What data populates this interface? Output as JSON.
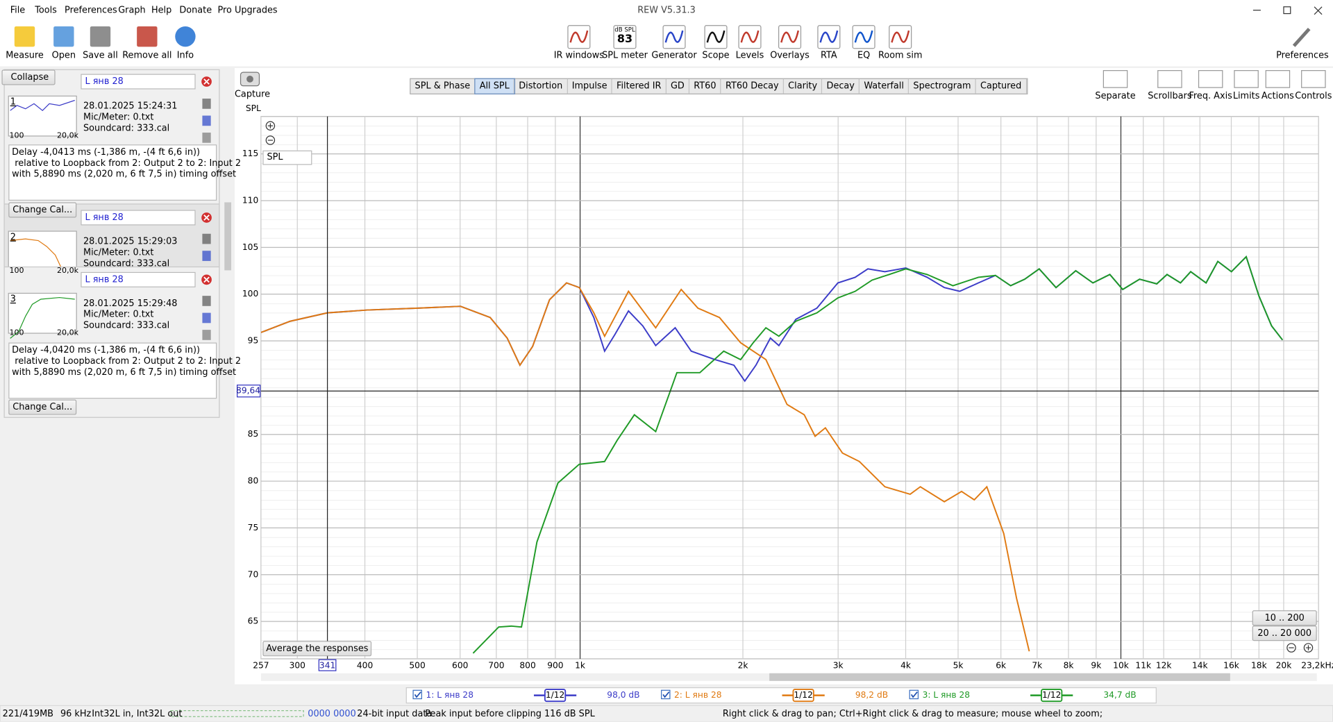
{
  "window": {
    "title": "REW V5.31.3"
  },
  "menu": [
    "File",
    "Tools",
    "Preferences",
    "Graph",
    "Help",
    "Donate",
    "Pro Upgrades"
  ],
  "toolbar_left": [
    "Measure",
    "Open",
    "Save all",
    "Remove all",
    "Info"
  ],
  "toolbar_center": [
    "IR windows",
    "SPL meter",
    "Generator",
    "Scope",
    "Levels",
    "Overlays",
    "RTA",
    "EQ",
    "Room sim"
  ],
  "spl_meter_icon": {
    "unit": "dB SPL",
    "value": 83
  },
  "toolbar_right": [
    "Preferences"
  ],
  "panel": {
    "collapse": "Collapse",
    "measurements": [
      {
        "number": "1",
        "name": "L янв 28",
        "date": "28.01.2025 15:24:31",
        "mic": "Mic/Meter: 0.txt",
        "soundcard": "Soundcard: 333.cal",
        "thumb_min": "100",
        "thumb_max": "20,0k",
        "info": [
          "Delay -4,0413 ms (-1,386 m, -(4 ft 6,6 in))",
          " relative to Loopback from 2: Output 2 to 2: Input 2",
          "with 5,8890 ms (2,020 m, 6 ft 7,5 in) timing offset"
        ],
        "button": "Change Cal..."
      },
      {
        "number": "2",
        "name": "L янв 28",
        "date": "28.01.2025 15:29:03",
        "mic": "Mic/Meter: 0.txt",
        "soundcard": "Soundcard: 333.cal",
        "thumb_min": "100",
        "thumb_max": "20,0k"
      },
      {
        "number": "3",
        "name": "L янв 28",
        "date": "28.01.2025 15:29:48",
        "mic": "Mic/Meter: 0.txt",
        "soundcard": "Soundcard: 333.cal",
        "thumb_min": "100",
        "thumb_max": "20,0k",
        "info": [
          "Delay -4,0420 ms (-1,386 m, -(4 ft 6,6 in))",
          " relative to Loopback from 2: Output 2 to 2: Input 2",
          "with 5,8890 ms (2,020 m, 6 ft 7,5 in) timing offset"
        ],
        "button": "Change Cal..."
      }
    ]
  },
  "capture": "Capture",
  "tabs": [
    "SPL & Phase",
    "All SPL",
    "Distortion",
    "Impulse",
    "Filtered IR",
    "GD",
    "RT60",
    "RT60 Decay",
    "Clarity",
    "Decay",
    "Waterfall",
    "Spectrogram",
    "Captured"
  ],
  "selected_tab": 1,
  "graph_tools": [
    "Separate",
    "Scrollbars",
    "Freq. Axis",
    "Limits",
    "Actions",
    "Controls"
  ],
  "chart_data": {
    "type": "line",
    "y_label": "SPL",
    "y_selector": "SPL",
    "average_button": "Average the responses",
    "zoom_presets": [
      "10 .. 200",
      "20 .. 20 000"
    ],
    "log_x": true,
    "grid": true,
    "xlim": [
      257,
      23200
    ],
    "ylim": [
      61,
      119
    ],
    "xticks": [
      257,
      300,
      400,
      500,
      600,
      700,
      800,
      900,
      {
        "value": 1000,
        "label": "1k"
      },
      {
        "value": 2000,
        "label": "2k"
      },
      {
        "value": 3000,
        "label": "3k"
      },
      {
        "value": 4000,
        "label": "4k"
      },
      {
        "value": 5000,
        "label": "5k"
      },
      {
        "value": 6000,
        "label": "6k"
      },
      {
        "value": 7000,
        "label": "7k"
      },
      {
        "value": 8000,
        "label": "8k"
      },
      {
        "value": 9000,
        "label": "9k"
      },
      {
        "value": 10000,
        "label": "10k"
      },
      {
        "value": 11000,
        "label": "11k"
      },
      {
        "value": 12000,
        "label": "12k"
      },
      {
        "value": 14000,
        "label": "14k"
      },
      {
        "value": 16000,
        "label": "16k"
      },
      {
        "value": 18000,
        "label": "18k"
      },
      {
        "value": 20000,
        "label": "20k"
      },
      {
        "value": 23200,
        "label": "23,2kHz"
      }
    ],
    "yticks": [
      65,
      70,
      75,
      80,
      85,
      95,
      100,
      105,
      110,
      115
    ],
    "cursor": {
      "x": {
        "value": 341,
        "label": "341"
      },
      "y": {
        "value": 89.64,
        "label": "89,64"
      }
    },
    "series": [
      {
        "name": "1: L янв 28",
        "color": "#3c3cc8",
        "smoothing": "1/12",
        "level_label": "98,0 dB",
        "x": [
          257,
          291,
          341,
          404,
          501,
          601,
          682,
          733,
          774,
          817,
          878,
          944,
          997,
          1060,
          1110,
          1160,
          1229,
          1306,
          1380,
          1499,
          1605,
          1776,
          1925,
          2016,
          2114,
          2248,
          2331,
          2505,
          2741,
          2997,
          3225,
          3406,
          3661,
          4002,
          4383,
          4716,
          5034,
          5451,
          5862,
          6254,
          6640,
          7063,
          7588,
          8250,
          8876,
          9541,
          10075,
          10830,
          11650,
          12170,
          12890,
          13460,
          14370,
          15110,
          16010,
          17050,
          18000,
          19000,
          19900
        ],
        "values": [
          95.9,
          97.1,
          98.0,
          98.3,
          98.5,
          98.7,
          97.5,
          95.3,
          92.4,
          94.4,
          99.4,
          101.2,
          100.7,
          97.5,
          93.9,
          95.7,
          98.2,
          96.6,
          94.5,
          96.4,
          93.9,
          93.0,
          92.4,
          90.7,
          92.4,
          95.3,
          94.5,
          97.3,
          98.5,
          101.2,
          101.8,
          102.7,
          102.4,
          102.8,
          101.8,
          100.7,
          100.3,
          101.2,
          102.0,
          100.9,
          101.6,
          102.7,
          100.7,
          102.5,
          101.2,
          102.1,
          100.5,
          101.6,
          101.1,
          102.1,
          101.2,
          102.4,
          101.2,
          103.5,
          102.4,
          104.0,
          99.8,
          96.6,
          95.1
        ]
      },
      {
        "name": "2: L янв 28",
        "color": "#e07a12",
        "smoothing": "1/12",
        "level_label": "98,2 dB",
        "x": [
          257,
          291,
          341,
          404,
          501,
          601,
          682,
          733,
          774,
          817,
          878,
          944,
          997,
          1060,
          1110,
          1229,
          1380,
          1538,
          1652,
          1810,
          1981,
          2206,
          2414,
          2597,
          2720,
          2842,
          3056,
          3284,
          3661,
          4077,
          4258,
          4716,
          5075,
          5355,
          5650,
          6073,
          6412,
          6770
        ],
        "values": [
          95.9,
          97.1,
          98.0,
          98.3,
          98.5,
          98.7,
          97.5,
          95.3,
          92.4,
          94.4,
          99.4,
          101.2,
          100.7,
          98.0,
          95.5,
          100.3,
          96.4,
          100.5,
          98.5,
          97.5,
          94.8,
          93.0,
          88.2,
          87.1,
          84.8,
          85.7,
          83.0,
          82.1,
          79.4,
          78.6,
          79.4,
          77.8,
          78.9,
          78.0,
          79.4,
          74.4,
          67.5,
          61.8
        ]
      },
      {
        "name": "3: L янв 28",
        "color": "#1f9a26",
        "smoothing": "1/12",
        "level_label": "34,7 dB",
        "x": [
          634,
          707,
          746,
          779,
          832,
          910,
          996,
          1110,
          1172,
          1260,
          1380,
          1510,
          1665,
          1843,
          1981,
          2090,
          2206,
          2331,
          2505,
          2741,
          2997,
          3225,
          3467,
          3726,
          4002,
          4383,
          4890,
          5451,
          5862,
          6254,
          6640,
          7063,
          7588,
          8250,
          8876,
          9541,
          10075,
          10830,
          11650,
          12170,
          12890,
          13460,
          14370,
          15110,
          16010,
          17050,
          18000,
          19000,
          19900
        ],
        "values": [
          61.6,
          64.4,
          64.5,
          64.4,
          73.5,
          79.8,
          81.8,
          82.1,
          84.4,
          87.1,
          85.3,
          91.6,
          91.6,
          93.9,
          93.0,
          94.8,
          96.4,
          95.5,
          97.1,
          98.0,
          99.6,
          100.3,
          101.5,
          102.1,
          102.7,
          102.1,
          100.9,
          101.8,
          102.0,
          100.9,
          101.6,
          102.7,
          100.7,
          102.5,
          101.2,
          102.1,
          100.5,
          101.6,
          101.1,
          102.1,
          101.2,
          102.4,
          101.2,
          103.5,
          102.4,
          104.0,
          99.8,
          96.6,
          95.1
        ]
      }
    ]
  },
  "status_bar": [
    "221/419MB",
    "96 kHz",
    "Int32L in, Int32L out",
    "0000 0000",
    "24-bit input data",
    "Peak input before clipping 116 dB SPL",
    "Right click & drag to pan; Ctrl+Right click & drag to measure; mouse wheel to zoom;"
  ]
}
